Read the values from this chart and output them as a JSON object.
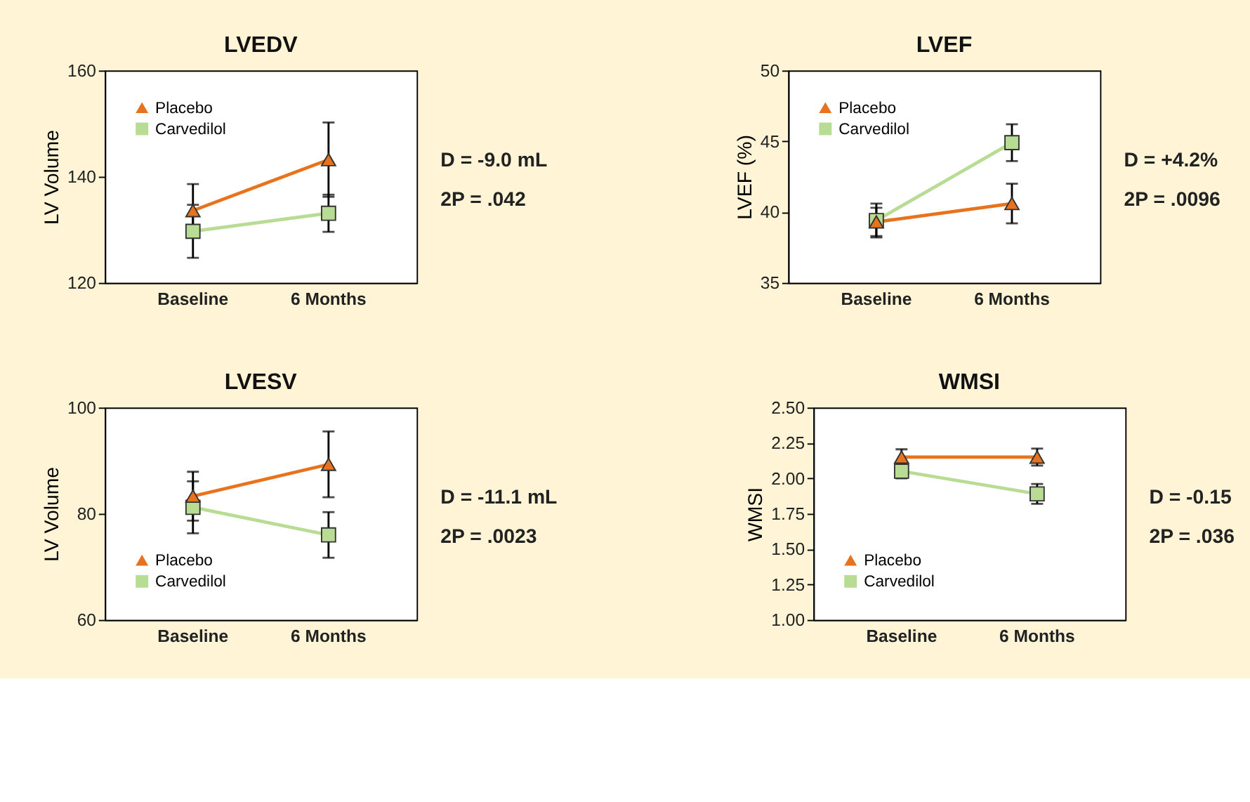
{
  "chart_data": [
    {
      "type": "line",
      "title": "LVEDV",
      "ylabel": "LV Volume",
      "categories": [
        "Baseline",
        "6 Months"
      ],
      "ylim": [
        120,
        160
      ],
      "yticks": [
        120,
        140,
        160
      ],
      "legend": "top left",
      "annotations": [
        "D = -9.0 mL",
        "2P = .042"
      ],
      "series": [
        {
          "name": "Placebo",
          "color": "#e8731e",
          "marker": "triangle",
          "values": [
            133.6,
            143.2
          ],
          "errors": [
            5,
            7
          ]
        },
        {
          "name": "Carvedilol",
          "color": "#b8dc94",
          "marker": "square",
          "values": [
            129.7,
            133.1
          ],
          "errors": [
            5,
            3.5
          ]
        }
      ]
    },
    {
      "type": "line",
      "title": "LVEF",
      "ylabel": "LVEF (%)",
      "categories": [
        "Baseline",
        "6 Months"
      ],
      "ylim": [
        35,
        50
      ],
      "yticks": [
        35,
        40,
        45,
        50
      ],
      "legend": "top left",
      "annotations": [
        "D = +4.2%",
        "2P = .0096"
      ],
      "series": [
        {
          "name": "Placebo",
          "color": "#e8731e",
          "marker": "triangle",
          "values": [
            39.3,
            40.6
          ],
          "errors": [
            1,
            1.4
          ]
        },
        {
          "name": "Carvedilol",
          "color": "#b8dc94",
          "marker": "square",
          "values": [
            39.4,
            44.9
          ],
          "errors": [
            1.2,
            1.3
          ]
        }
      ]
    },
    {
      "type": "line",
      "title": "LVESV",
      "ylabel": "LV Volume",
      "categories": [
        "Baseline",
        "6 Months"
      ],
      "ylim": [
        60,
        100
      ],
      "yticks": [
        60,
        80,
        100
      ],
      "legend": "bottom left",
      "annotations": [
        "D = -11.1 mL",
        "2P = .0023"
      ],
      "series": [
        {
          "name": "Placebo",
          "color": "#e8731e",
          "marker": "triangle",
          "values": [
            83.3,
            89.3
          ],
          "errors": [
            4.6,
            6.2
          ]
        },
        {
          "name": "Carvedilol",
          "color": "#b8dc94",
          "marker": "square",
          "values": [
            81.2,
            76.0
          ],
          "errors": [
            4.9,
            4.3
          ]
        }
      ]
    },
    {
      "type": "line",
      "title": "WMSI",
      "ylabel": "WMSI",
      "categories": [
        "Baseline",
        "6 Months"
      ],
      "ylim": [
        1,
        2.5
      ],
      "yticks": [
        {
          "value": 1,
          "label": "1.00"
        },
        {
          "value": 1.25,
          "label": "1.25"
        },
        {
          "value": 1.5,
          "label": "1.50"
        },
        {
          "value": 1.75,
          "label": "1.75"
        },
        {
          "value": 2,
          "label": "2.00"
        },
        {
          "value": 2.25,
          "label": "2.25"
        },
        {
          "value": 2.5,
          "label": "2.50"
        }
      ],
      "legend": "bottom left",
      "annotations": [
        "D = -0.15",
        "2P = .036"
      ],
      "series": [
        {
          "name": "Placebo",
          "color": "#e8731e",
          "marker": "triangle",
          "values": [
            2.15,
            2.15
          ],
          "errors": [
            0.055,
            0.06
          ]
        },
        {
          "name": "Carvedilol",
          "color": "#b8dc94",
          "marker": "square",
          "values": [
            2.05,
            1.89
          ],
          "errors": [
            0.05,
            0.07
          ]
        }
      ]
    }
  ]
}
